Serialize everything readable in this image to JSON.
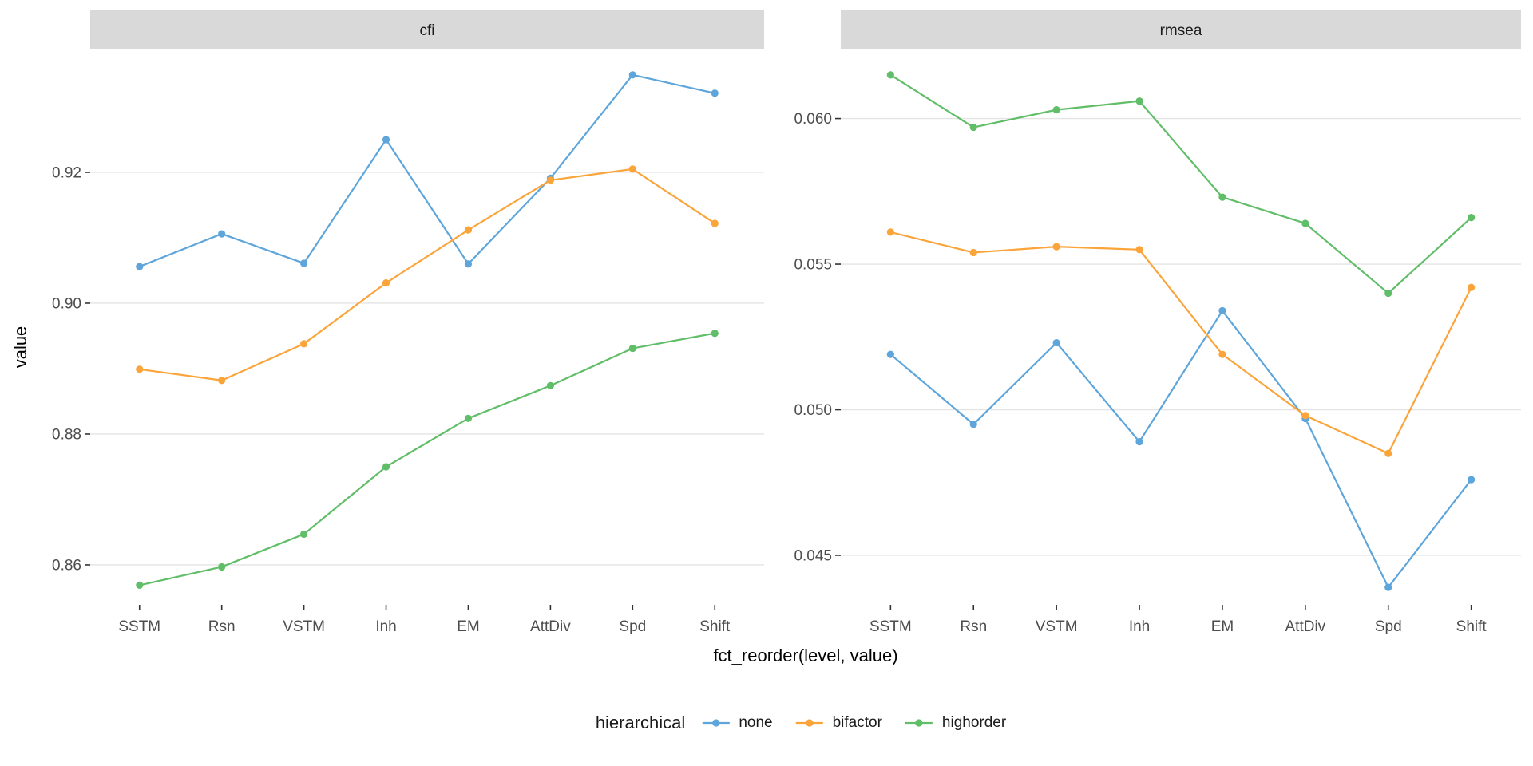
{
  "chart_data": {
    "type": "line",
    "categories": [
      "SSTM",
      "Rsn",
      "VSTM",
      "Inh",
      "EM",
      "AttDiv",
      "Spd",
      "Shift"
    ],
    "xlabel": "fct_reorder(level, value)",
    "ylabel": "value",
    "legend": {
      "title": "hierarchical",
      "position": "bottom"
    },
    "grid": true,
    "facets": [
      {
        "label": "cfi",
        "ylim": [
          0.8539,
          0.9389
        ],
        "yticks": [
          {
            "value": 0.86,
            "label": "0.86"
          },
          {
            "value": 0.88,
            "label": "0.88"
          },
          {
            "value": 0.9,
            "label": "0.90"
          },
          {
            "value": 0.92,
            "label": "0.92"
          }
        ],
        "series": [
          {
            "name": "none",
            "color": "#5DA5DA",
            "values": [
              0.9056,
              0.9106,
              0.9061,
              0.925,
              0.906,
              0.9191,
              0.9349,
              0.9321
            ]
          },
          {
            "name": "bifactor",
            "color": "#FAA43A",
            "values": [
              0.8899,
              0.8882,
              0.8938,
              0.9031,
              0.9112,
              0.9188,
              0.9205,
              0.9122
            ]
          },
          {
            "name": "highorder",
            "color": "#60BD68",
            "values": [
              0.8569,
              0.8597,
              0.8647,
              0.875,
              0.8824,
              0.8874,
              0.8931,
              0.8954
            ]
          }
        ]
      },
      {
        "label": "rmsea",
        "ylim": [
          0.0433,
          0.0624
        ],
        "yticks": [
          {
            "value": 0.045,
            "label": "0.045"
          },
          {
            "value": 0.05,
            "label": "0.050"
          },
          {
            "value": 0.055,
            "label": "0.055"
          },
          {
            "value": 0.06,
            "label": "0.060"
          }
        ],
        "series": [
          {
            "name": "none",
            "color": "#5DA5DA",
            "values": [
              0.0519,
              0.0495,
              0.0523,
              0.0489,
              0.0534,
              0.0497,
              0.0439,
              0.0476
            ]
          },
          {
            "name": "bifactor",
            "color": "#FAA43A",
            "values": [
              0.0561,
              0.0554,
              0.0556,
              0.0555,
              0.0519,
              0.0498,
              0.0485,
              0.0542
            ]
          },
          {
            "name": "highorder",
            "color": "#60BD68",
            "values": [
              0.0615,
              0.0597,
              0.0603,
              0.0606,
              0.0573,
              0.0564,
              0.054,
              0.0566
            ]
          }
        ]
      }
    ]
  },
  "colors": {
    "background": "#FFFFFF",
    "strip_bg": "#D9D9D9",
    "panel_bg": "#FFFFFF",
    "gridline": "#E4E4E4",
    "tick_mark": "#333333",
    "tick_label": "#4D4D4D",
    "strip_text": "#1A1A1A",
    "axis_title": "#000000"
  }
}
